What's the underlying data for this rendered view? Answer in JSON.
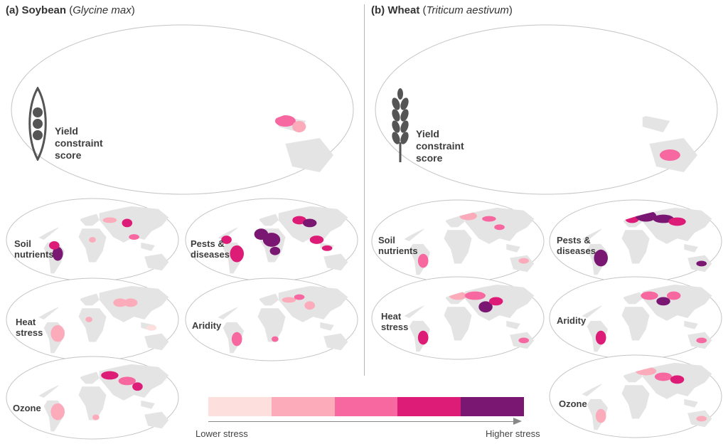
{
  "panels": {
    "a": {
      "letter": "(a)",
      "crop": "Soybean",
      "latin": "Glycine max",
      "icon": "soybean-pod-icon"
    },
    "b": {
      "letter": "(b)",
      "crop": "Wheat",
      "latin": "Triticum aestivum",
      "icon": "wheat-ear-icon"
    }
  },
  "map_labels": {
    "yield_line1": "Yield",
    "yield_line2": "constraint",
    "yield_line3": "score",
    "soil_line1": "Soil",
    "soil_line2": "nutrients",
    "pests_line1": "Pests &",
    "pests_line2": "diseases",
    "heat_line1": "Heat",
    "heat_line2": "stress",
    "aridity": "Aridity",
    "ozone": "Ozone"
  },
  "legend": {
    "low": "Lower stress",
    "high": "Higher stress",
    "colors": [
      "#fde0dd",
      "#fbabba",
      "#f768a1",
      "#dd1c77",
      "#7a1772"
    ]
  },
  "colors": {
    "land": "#e4e4e4",
    "ocean": "#ffffff",
    "outline": "#c4c4c4"
  }
}
